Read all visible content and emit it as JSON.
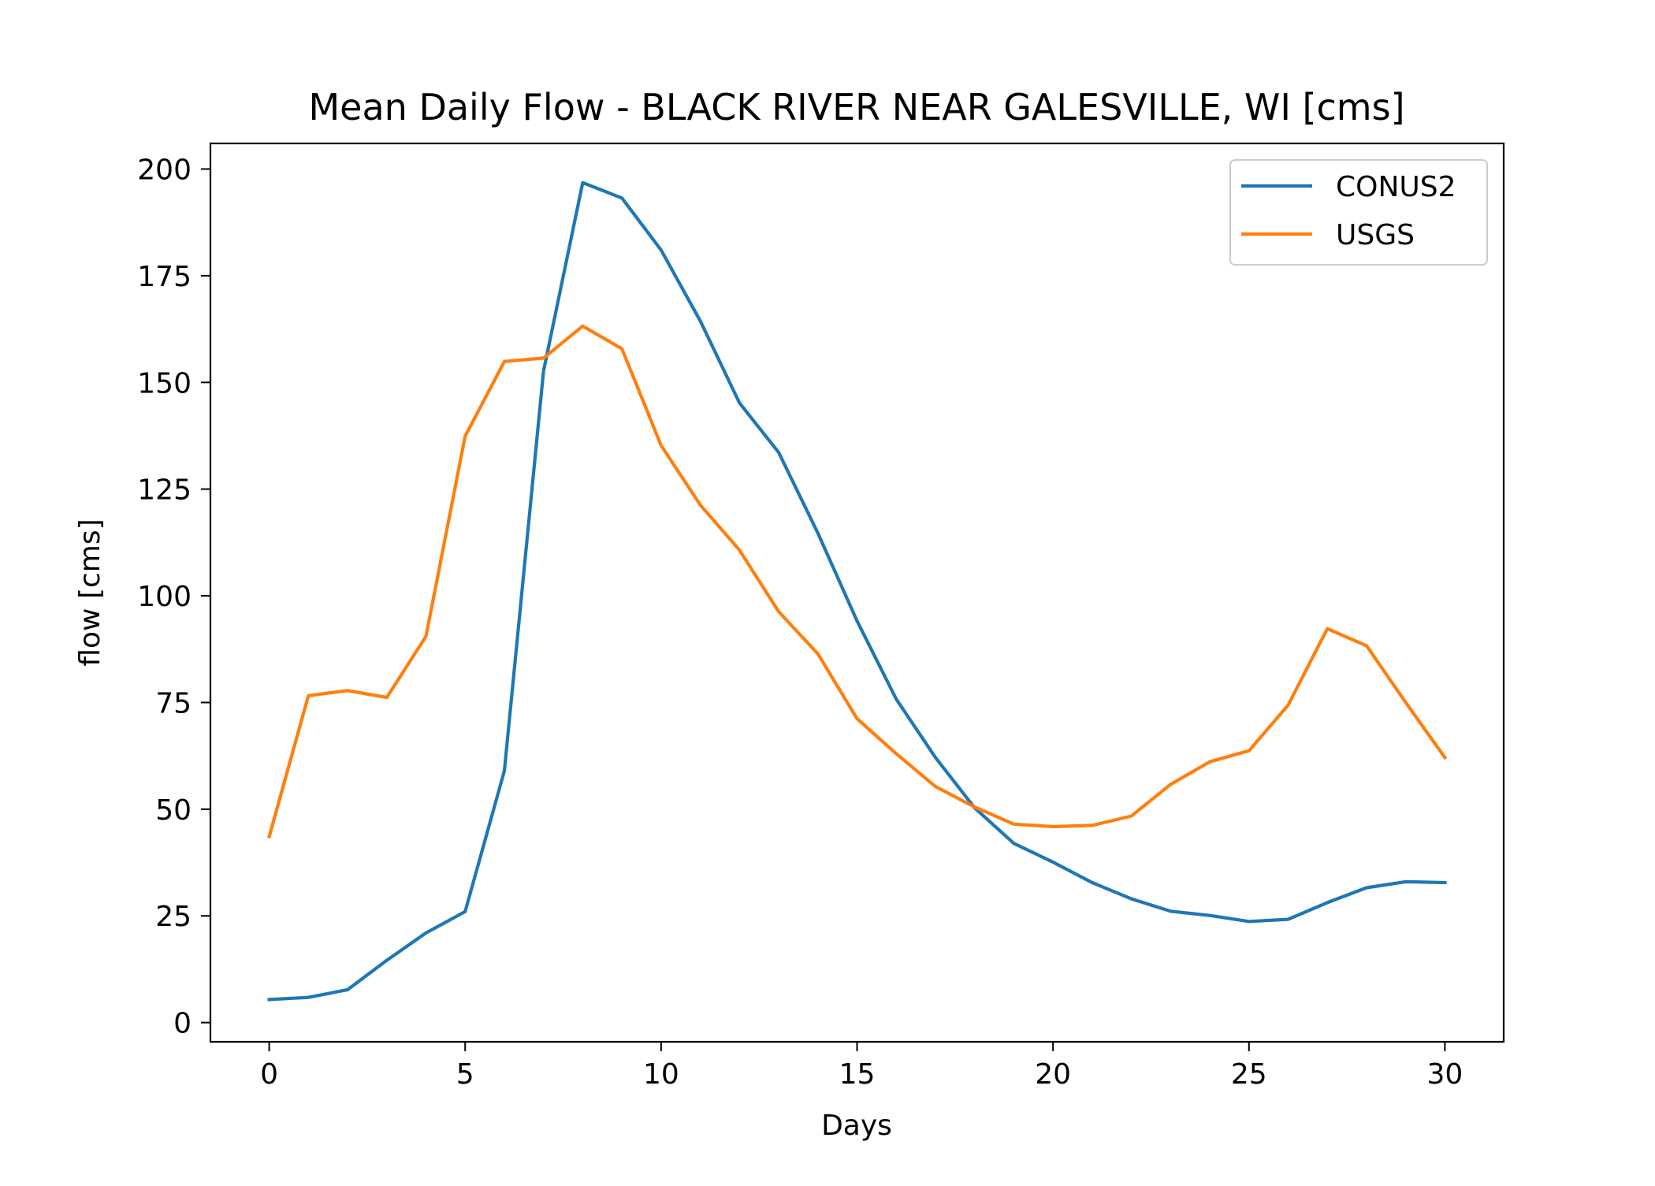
{
  "chart_data": {
    "type": "line",
    "title": "Mean Daily Flow - BLACK RIVER NEAR GALESVILLE, WI [cms]",
    "xlabel": "Days",
    "ylabel": "flow [cms]",
    "xlim": [
      -1.5,
      31.5
    ],
    "ylim": [
      -4.5,
      206
    ],
    "xticks": [
      0,
      5,
      10,
      15,
      20,
      25,
      30
    ],
    "yticks": [
      0,
      25,
      50,
      75,
      100,
      125,
      150,
      175,
      200
    ],
    "grid": false,
    "legend_position": "upper right",
    "x": [
      0,
      1,
      2,
      3,
      4,
      5,
      6,
      7,
      8,
      9,
      10,
      11,
      12,
      13,
      14,
      15,
      16,
      17,
      18,
      19,
      20,
      21,
      22,
      23,
      24,
      25,
      26,
      27,
      28,
      29,
      30
    ],
    "series": [
      {
        "name": "CONUS2",
        "color": "#1f77b4",
        "values": [
          5.4,
          5.9,
          7.7,
          14.6,
          21.0,
          26.0,
          59.0,
          152.7,
          196.8,
          193.2,
          181.0,
          164.4,
          145.2,
          133.6,
          114.7,
          94.1,
          75.8,
          62.1,
          50.3,
          42.0,
          37.6,
          32.8,
          29.0,
          26.1,
          25.1,
          23.7,
          24.2,
          28.1,
          31.6,
          33.0,
          32.8
        ]
      },
      {
        "name": "USGS",
        "color": "#ff7f0e",
        "values": [
          43.6,
          76.6,
          77.8,
          76.2,
          90.5,
          137.4,
          154.9,
          155.7,
          163.2,
          157.9,
          135.2,
          121.3,
          110.7,
          96.3,
          86.4,
          71.2,
          63.0,
          55.3,
          50.5,
          46.5,
          45.9,
          46.2,
          48.4,
          55.8,
          61.1,
          63.7,
          74.4,
          92.3,
          88.3,
          75.0,
          62.1
        ]
      }
    ]
  }
}
